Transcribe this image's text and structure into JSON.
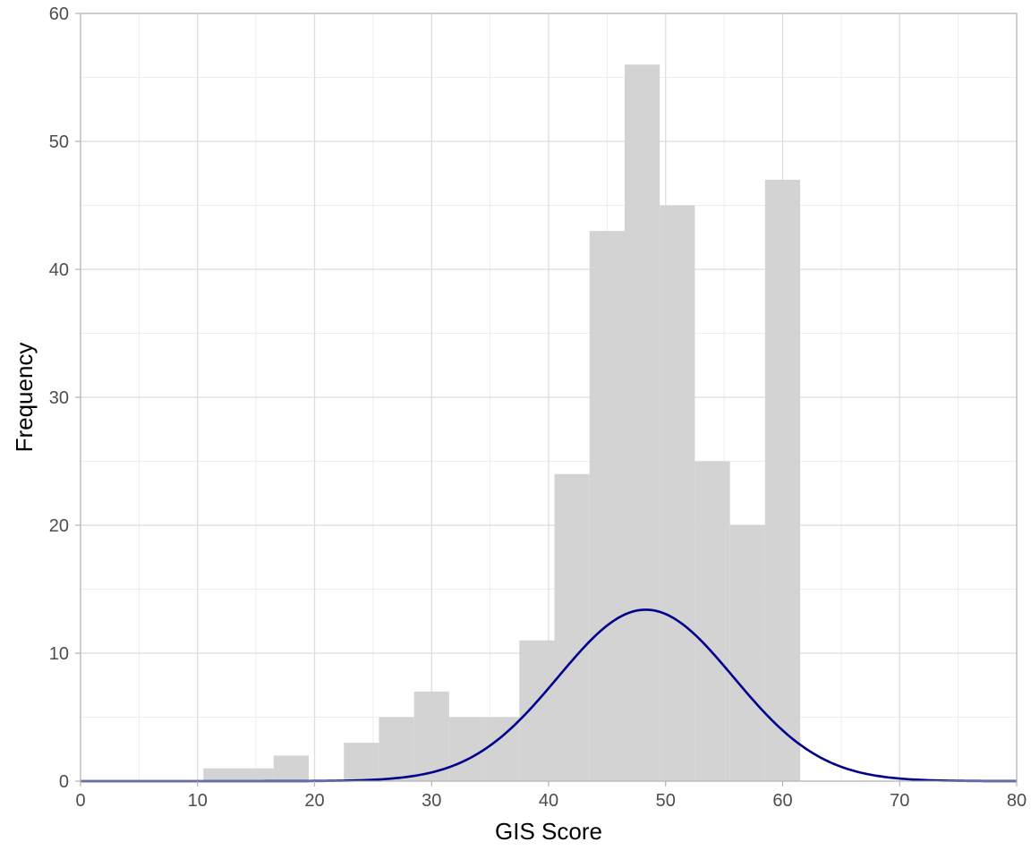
{
  "chart_data": {
    "type": "bar",
    "xlabel": "GIS Score",
    "ylabel": "Frequency",
    "xlim": [
      0,
      80
    ],
    "ylim": [
      0,
      60
    ],
    "x_ticks": [
      0,
      10,
      20,
      30,
      40,
      50,
      60,
      70,
      80
    ],
    "y_ticks": [
      0,
      10,
      20,
      30,
      40,
      50,
      60
    ],
    "grid": true,
    "bin_width": 3,
    "bins": [
      {
        "start": 10.5,
        "end": 13.5,
        "count": 1
      },
      {
        "start": 13.5,
        "end": 16.5,
        "count": 1
      },
      {
        "start": 16.5,
        "end": 19.5,
        "count": 2
      },
      {
        "start": 19.5,
        "end": 22.5,
        "count": 0
      },
      {
        "start": 22.5,
        "end": 25.5,
        "count": 3
      },
      {
        "start": 25.5,
        "end": 28.5,
        "count": 5
      },
      {
        "start": 28.5,
        "end": 31.5,
        "count": 7
      },
      {
        "start": 31.5,
        "end": 34.5,
        "count": 5
      },
      {
        "start": 34.5,
        "end": 37.5,
        "count": 5
      },
      {
        "start": 37.5,
        "end": 40.5,
        "count": 11
      },
      {
        "start": 40.5,
        "end": 43.5,
        "count": 24
      },
      {
        "start": 43.5,
        "end": 46.5,
        "count": 43
      },
      {
        "start": 46.5,
        "end": 49.5,
        "count": 56
      },
      {
        "start": 49.5,
        "end": 52.5,
        "count": 45
      },
      {
        "start": 52.5,
        "end": 55.5,
        "count": 25
      },
      {
        "start": 55.5,
        "end": 58.5,
        "count": 20
      },
      {
        "start": 58.5,
        "end": 61.5,
        "count": 47
      }
    ],
    "normal_curve": {
      "mean": 48.3,
      "sd": 7.5,
      "peak": 13.4
    },
    "colors": {
      "bar_fill": "#d3d3d3",
      "curve": "#00008b",
      "grid_major": "#dedede",
      "grid_minor": "#ededed",
      "panel_border": "#b3b3b3"
    }
  }
}
